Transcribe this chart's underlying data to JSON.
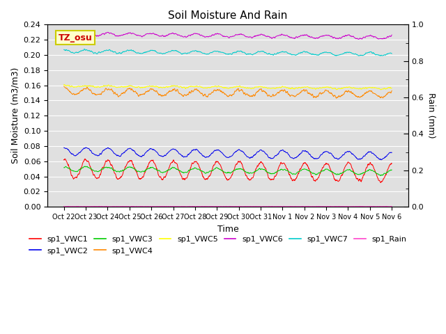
{
  "title": "Soil Moisture And Rain",
  "xlabel": "Time",
  "ylabel_left": "Soil Moisture (m3/m3)",
  "ylabel_right": "Rain (mm)",
  "annotation": "TZ_osu",
  "annotation_color": "#cc0000",
  "annotation_bg": "#ffffcc",
  "annotation_border": "#cccc00",
  "ylim_left": [
    0.0,
    0.24
  ],
  "ylim_right": [
    0.0,
    1.0
  ],
  "background_color": "#e0e0e0",
  "num_days": 15,
  "n_points": 1440,
  "series": {
    "sp1_VWC1": {
      "color": "#ff0000",
      "base": 0.05,
      "amplitude": 0.012,
      "trend": -0.005,
      "period_days": 1.0,
      "noise": 0.002,
      "phase": 1.5
    },
    "sp1_VWC2": {
      "color": "#0000ee",
      "base": 0.073,
      "amplitude": 0.005,
      "trend": -0.006,
      "period_days": 1.0,
      "noise": 0.001,
      "phase": 1.5
    },
    "sp1_VWC3": {
      "color": "#00cc00",
      "base": 0.05,
      "amplitude": 0.003,
      "trend": -0.005,
      "period_days": 1.0,
      "noise": 0.001,
      "phase": 1.5
    },
    "sp1_VWC4": {
      "color": "#ff8800",
      "base": 0.152,
      "amplitude": 0.004,
      "trend": -0.004,
      "period_days": 1.0,
      "noise": 0.002,
      "phase": 1.5
    },
    "sp1_VWC5": {
      "color": "#ffff00",
      "base": 0.159,
      "amplitude": 0.001,
      "trend": -0.003,
      "period_days": 1.0,
      "noise": 0.001,
      "phase": 1.5
    },
    "sp1_VWC6": {
      "color": "#cc00cc",
      "base": 0.228,
      "amplitude": 0.002,
      "trend": -0.005,
      "period_days": 1.0,
      "noise": 0.001,
      "phase": 1.5
    },
    "sp1_VWC7": {
      "color": "#00cccc",
      "base": 0.205,
      "amplitude": 0.002,
      "trend": -0.004,
      "period_days": 1.0,
      "noise": 0.001,
      "phase": 1.5
    }
  },
  "rain_color": "#ff44cc",
  "rain_value": 0.002,
  "tick_labels": [
    "Oct 22",
    "Oct 23",
    "Oct 24",
    "Oct 25",
    "Oct 26",
    "Oct 27",
    "Oct 28",
    "Oct 29",
    "Oct 30",
    "Oct 31",
    "Nov 1",
    "Nov 2",
    "Nov 3",
    "Nov 4",
    "Nov 5",
    "Nov 6"
  ],
  "legend_row1": [
    {
      "label": "sp1_VWC1",
      "color": "#ff0000"
    },
    {
      "label": "sp1_VWC2",
      "color": "#0000ee"
    },
    {
      "label": "sp1_VWC3",
      "color": "#00cc00"
    },
    {
      "label": "sp1_VWC4",
      "color": "#ff8800"
    },
    {
      "label": "sp1_VWC5",
      "color": "#ffff00"
    },
    {
      "label": "sp1_VWC6",
      "color": "#cc00cc"
    }
  ],
  "legend_row2": [
    {
      "label": "sp1_VWC7",
      "color": "#00cccc"
    },
    {
      "label": "sp1_Rain",
      "color": "#ff44cc"
    }
  ]
}
